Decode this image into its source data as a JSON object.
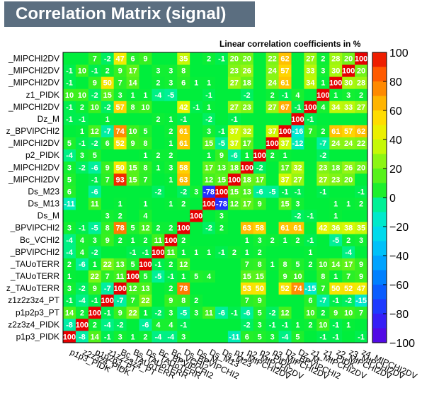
{
  "title": "Correlation Matrix (signal)",
  "subtitle": "Linear correlation coefficients in %",
  "chart_data": {
    "type": "heatmap",
    "variables": [
      "p1p3_PIDK",
      "z2z3z4_PIDK",
      "p1p2p3_PT",
      "z1z2z3z4_PT",
      "z_TAUoTERR",
      "_TAUoTERR",
      "_TAUoTERR",
      "_BPVIPCHI2",
      "Bc_VCHI2",
      "_BPVIPCHI2",
      "Ds_M",
      "Ds_M13",
      "Ds_M23",
      "_MIPCHI2DV",
      "_MIPCHI2DV",
      "p2_PIDK",
      "_MIPCHI2DV",
      "z_BPVIPCHI2",
      "Dz_M",
      "_MIPCHI2DV",
      "z1_PIDK",
      "_MIPCHI2DV",
      "_MIPCHI2DV",
      "_MIPCHI2DV"
    ],
    "x_tick_labels": [
      "p1p3_PIDK",
      "z2z3z4_PIDK",
      "p1p2p3_PT",
      "z1z2z3z4_PT",
      "Bc_TAUoTERR",
      "Bs_TAUoTERR",
      "Ds_TAUoTERR",
      "Bc_BPVIPCHI2",
      "Bc_VCHI2",
      "Ds_BPVIPCHI2",
      "Ds_M",
      "Ds_M13",
      "Ds_M23",
      "p1_MIPCHI2DV",
      "p2_MIPCHI2DV",
      "p2_PIDK",
      "p3_MIPCHI2DV",
      "Dz_BPVIPCHI2",
      "Dz_M",
      "z1_MIPCHI2DV",
      "z1_PIDK",
      "z2_MIPCHI2DV",
      "z3_MIPCHI2DV",
      "z4_MIPCHI2DV"
    ],
    "values": [
      [
        100,
        -8,
        14,
        -1,
        3,
        1,
        2,
        -4,
        -4,
        3,
        0,
        0,
        0,
        -11,
        6,
        5,
        3,
        -4,
        5,
        0,
        -1,
        -1,
        0,
        -1
      ],
      [
        -8,
        100,
        2,
        -4,
        -2,
        0,
        -6,
        4,
        4,
        -1,
        0,
        0,
        0,
        0,
        -2,
        3,
        -1,
        -1,
        1,
        2,
        10,
        -1,
        1,
        0
      ],
      [
        14,
        2,
        100,
        -1,
        9,
        22,
        1,
        -2,
        3,
        -5,
        3,
        11,
        -6,
        -1,
        -6,
        5,
        -2,
        12,
        0,
        10,
        2,
        9,
        10,
        7
      ],
      [
        -1,
        -4,
        -1,
        100,
        -7,
        7,
        22,
        0,
        9,
        8,
        2,
        0,
        0,
        0,
        7,
        9,
        0,
        0,
        0,
        6,
        -7,
        -1,
        -2,
        -15
      ],
      [
        3,
        -2,
        9,
        -7,
        100,
        12,
        13,
        0,
        2,
        78,
        0,
        0,
        0,
        0,
        53,
        50,
        0,
        52,
        74,
        -15,
        7,
        50,
        52,
        47
      ],
      [
        1,
        0,
        22,
        7,
        11,
        100,
        5,
        -5,
        -1,
        1,
        5,
        4,
        0,
        0,
        15,
        15,
        0,
        9,
        10,
        0,
        8,
        1,
        7,
        9
      ],
      [
        2,
        -6,
        1,
        22,
        13,
        5,
        100,
        -1,
        2,
        12,
        0,
        0,
        0,
        0,
        7,
        8,
        1,
        8,
        5,
        2,
        10,
        14,
        17,
        9
      ],
      [
        -4,
        4,
        -2,
        0,
        0,
        -1,
        -1,
        100,
        11,
        1,
        1,
        1,
        -1,
        2,
        1,
        2,
        0,
        0,
        0,
        1,
        0,
        0,
        -4,
        0
      ],
      [
        -4,
        4,
        3,
        9,
        2,
        1,
        2,
        11,
        100,
        2,
        0,
        0,
        0,
        0,
        1,
        3,
        2,
        1,
        2,
        -1,
        0,
        -5,
        2,
        3
      ],
      [
        3,
        -1,
        -5,
        8,
        78,
        5,
        12,
        2,
        2,
        100,
        0,
        -2,
        2,
        0,
        63,
        58,
        0,
        61,
        61,
        0,
        42,
        36,
        38,
        35
      ],
      [
        0,
        0,
        0,
        3,
        2,
        0,
        4,
        0,
        0,
        0,
        100,
        0,
        3,
        0,
        0,
        0,
        0,
        0,
        -2,
        -1,
        0,
        1,
        0,
        0
      ],
      [
        -11,
        0,
        11,
        0,
        1,
        0,
        1,
        0,
        1,
        2,
        0,
        100,
        -78,
        12,
        17,
        9,
        0,
        15,
        3,
        0,
        0,
        1,
        1,
        2
      ],
      [
        6,
        0,
        -6,
        0,
        0,
        0,
        0,
        -2,
        0,
        -2,
        3,
        -78,
        100,
        15,
        13,
        -6,
        -5,
        -1,
        -1,
        0,
        -1,
        0,
        0,
        -1
      ],
      [
        5,
        0,
        -1,
        7,
        93,
        15,
        7,
        0,
        1,
        63,
        0,
        12,
        15,
        100,
        18,
        17,
        0,
        37,
        27,
        0,
        27,
        23,
        20,
        0
      ],
      [
        3,
        -2,
        -6,
        9,
        50,
        15,
        8,
        1,
        3,
        58,
        0,
        17,
        13,
        18,
        100,
        -2,
        0,
        17,
        32,
        0,
        23,
        18,
        26,
        20
      ],
      [
        -4,
        3,
        5,
        0,
        0,
        0,
        1,
        2,
        2,
        0,
        0,
        1,
        9,
        -6,
        1,
        100,
        2,
        1,
        0,
        0,
        -2,
        0,
        0,
        0
      ],
      [
        5,
        -1,
        -2,
        6,
        52,
        9,
        8,
        0,
        1,
        61,
        0,
        15,
        -5,
        37,
        17,
        0,
        100,
        37,
        -12,
        0,
        -7,
        24,
        24,
        22
      ],
      [
        0,
        1,
        12,
        -7,
        74,
        10,
        5,
        0,
        2,
        61,
        0,
        3,
        -1,
        37,
        32,
        0,
        37,
        100,
        -16,
        7,
        2,
        61,
        57,
        62
      ],
      [
        -1,
        -1,
        0,
        1,
        0,
        0,
        0,
        2,
        1,
        -1,
        0,
        -2,
        0,
        -1,
        0,
        0,
        0,
        0,
        100,
        -1,
        0,
        0,
        0,
        0
      ],
      [
        -1,
        2,
        10,
        -2,
        57,
        8,
        10,
        0,
        0,
        42,
        -1,
        1,
        0,
        27,
        23,
        0,
        27,
        67,
        -1,
        100,
        4,
        34,
        33,
        27
      ],
      [
        10,
        10,
        -2,
        15,
        3,
        1,
        1,
        -4,
        -5,
        0,
        0,
        -1,
        0,
        0,
        -2,
        0,
        2,
        -1,
        4,
        0,
        100,
        1,
        3,
        2
      ],
      [
        -1,
        0,
        9,
        50,
        7,
        14,
        0,
        2,
        3,
        6,
        1,
        1,
        0,
        27,
        18,
        0,
        24,
        61,
        0,
        34,
        1,
        100,
        30,
        28
      ],
      [
        -1,
        10,
        -1,
        2,
        9,
        17,
        0,
        3,
        3,
        8,
        0,
        0,
        0,
        23,
        26,
        0,
        24,
        57,
        0,
        33,
        3,
        30,
        100,
        20
      ],
      [
        0,
        0,
        7,
        -2,
        47,
        6,
        9,
        0,
        0,
        35,
        0,
        2,
        -1,
        20,
        20,
        0,
        22,
        62,
        0,
        27,
        2,
        28,
        20,
        100
      ]
    ],
    "zlim": [
      -100,
      100
    ],
    "palette_ticks": [
      "100",
      "80",
      "60",
      "40",
      "20",
      "0",
      "−20",
      "−40",
      "−60",
      "−80",
      "−100"
    ]
  }
}
